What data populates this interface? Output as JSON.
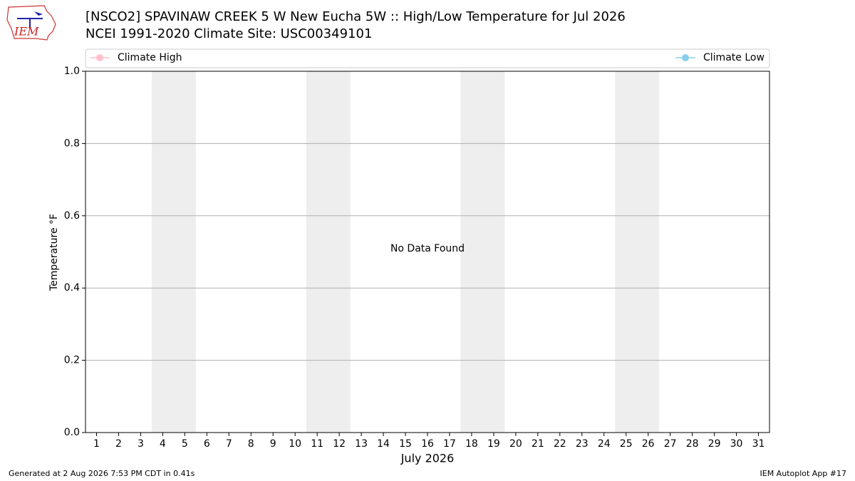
{
  "chart_data": {
    "type": "line",
    "title": "[NSCO2] SPAVINAW CREEK 5 W New Eucha 5W :: High/Low Temperature for Jul 2026",
    "subtitle": "NCEI 1991-2020 Climate Site: USC00349101",
    "logo": "IEM",
    "xlabel": "July 2026",
    "ylabel": "Temperature °F",
    "annotation": "No Data Found",
    "footer_left": "Generated at 2 Aug 2026 7:53 PM CDT in 0.41s",
    "footer_right": "IEM Autoplot App #17",
    "legend": "top",
    "grid": true,
    "xlim": [
      0.5,
      31.5
    ],
    "xticks": [
      1,
      2,
      3,
      4,
      5,
      6,
      7,
      8,
      9,
      10,
      11,
      12,
      13,
      14,
      15,
      16,
      17,
      18,
      19,
      20,
      21,
      22,
      23,
      24,
      25,
      26,
      27,
      28,
      29,
      30,
      31
    ],
    "ylim": [
      0,
      1
    ],
    "yticks": [
      {
        "value": 0,
        "label": "0.0"
      },
      0.2,
      0.4,
      0.6,
      0.8,
      {
        "value": 1,
        "label": "1.0"
      }
    ],
    "weekend_spans": [
      [
        3.5,
        5.5
      ],
      [
        10.5,
        12.5
      ],
      [
        17.5,
        19.5
      ],
      [
        24.5,
        26.5
      ]
    ],
    "weekend_color": "#eeeeee",
    "series": [
      {
        "name": "Climate High",
        "color": "#ffc0cb",
        "values": []
      },
      {
        "name": "Climate Low",
        "color": "#87ceeb",
        "values": []
      }
    ]
  }
}
